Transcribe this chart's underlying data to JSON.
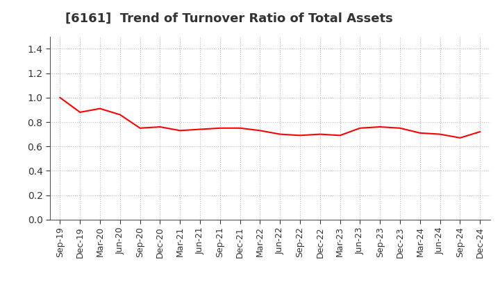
{
  "title": "[6161]  Trend of Turnover Ratio of Total Assets",
  "labels": [
    "Sep-19",
    "Dec-19",
    "Mar-20",
    "Jun-20",
    "Sep-20",
    "Dec-20",
    "Mar-21",
    "Jun-21",
    "Sep-21",
    "Dec-21",
    "Mar-22",
    "Jun-22",
    "Sep-22",
    "Dec-22",
    "Mar-23",
    "Jun-23",
    "Sep-23",
    "Dec-23",
    "Mar-24",
    "Jun-24",
    "Sep-24",
    "Dec-24"
  ],
  "values": [
    1.0,
    0.88,
    0.91,
    0.86,
    0.75,
    0.76,
    0.73,
    0.74,
    0.75,
    0.75,
    0.73,
    0.7,
    0.69,
    0.7,
    0.69,
    0.75,
    0.76,
    0.75,
    0.71,
    0.7,
    0.67,
    0.72
  ],
  "line_color": "#ff0000",
  "background_color": "#ffffff",
  "grid_color": "#bbbbbb",
  "ylim": [
    0.0,
    1.5
  ],
  "yticks": [
    0.0,
    0.2,
    0.4,
    0.6,
    0.8,
    1.0,
    1.2,
    1.4
  ],
  "title_fontsize": 13,
  "tick_fontsize": 9,
  "title_color": "#333333"
}
